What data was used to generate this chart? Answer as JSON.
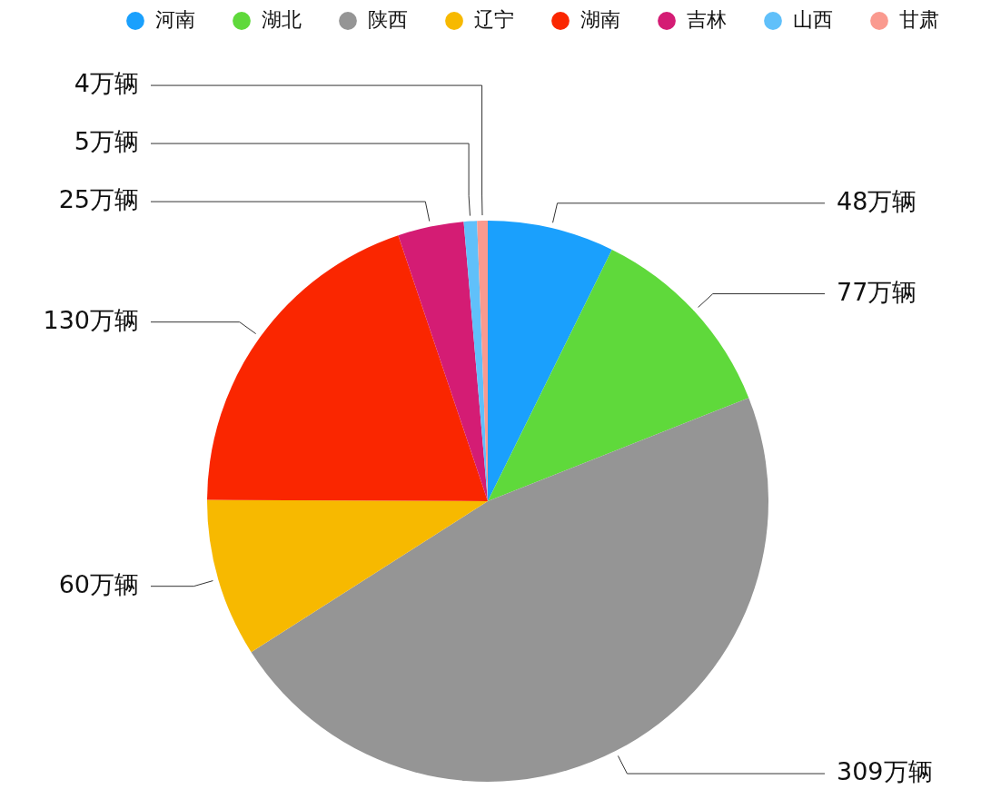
{
  "chart_data": {
    "type": "pie",
    "categories": [
      "河南",
      "湖北",
      "陕西",
      "辽宁",
      "湖南",
      "吉林",
      "山西",
      "甘肃"
    ],
    "values": [
      48,
      77,
      309,
      60,
      130,
      25,
      5,
      4
    ],
    "colors": [
      "#1aa0fd",
      "#5fd93b",
      "#959595",
      "#f7b900",
      "#fa2600",
      "#d41c74",
      "#60c0fa",
      "#fa9a8f"
    ],
    "value_labels": [
      "48万辆",
      "77万辆",
      "309万辆",
      "60万辆",
      "130万辆",
      "25万辆",
      "5万辆",
      "4万辆"
    ],
    "legend": "top"
  }
}
